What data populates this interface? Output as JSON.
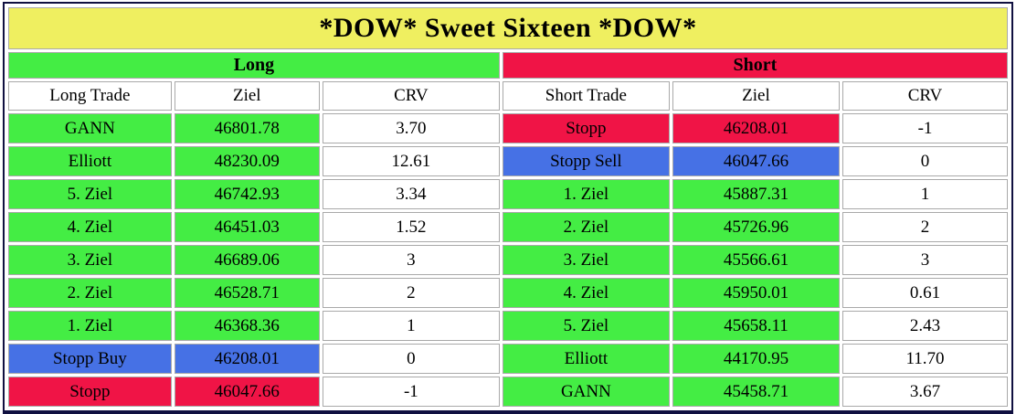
{
  "title": "*DOW* Sweet Sixteen *DOW*",
  "palette": {
    "yellow": "#efef60",
    "green": "#44ed44",
    "red": "#f01446",
    "blue": "#4671e5",
    "white": "#ffffff"
  },
  "sections": [
    {
      "label": "Long",
      "color": "green"
    },
    {
      "label": "Short",
      "color": "red"
    }
  ],
  "column_headers": [
    "Long Trade",
    "Ziel",
    "CRV",
    "Short Trade",
    "Ziel",
    "CRV"
  ],
  "rows": [
    {
      "long": {
        "trade": "GANN",
        "ziel": "46801.78",
        "crv": "3.70",
        "color": "green"
      },
      "short": {
        "trade": "Stopp",
        "ziel": "46208.01",
        "crv": "-1",
        "color": "red"
      }
    },
    {
      "long": {
        "trade": "Elliott",
        "ziel": "48230.09",
        "crv": "12.61",
        "color": "green"
      },
      "short": {
        "trade": "Stopp Sell",
        "ziel": "46047.66",
        "crv": "0",
        "color": "blue"
      }
    },
    {
      "long": {
        "trade": "5. Ziel",
        "ziel": "46742.93",
        "crv": "3.34",
        "color": "green"
      },
      "short": {
        "trade": "1. Ziel",
        "ziel": "45887.31",
        "crv": "1",
        "color": "green"
      }
    },
    {
      "long": {
        "trade": "4. Ziel",
        "ziel": "46451.03",
        "crv": "1.52",
        "color": "green"
      },
      "short": {
        "trade": "2. Ziel",
        "ziel": "45726.96",
        "crv": "2",
        "color": "green"
      }
    },
    {
      "long": {
        "trade": "3. Ziel",
        "ziel": "46689.06",
        "crv": "3",
        "color": "green"
      },
      "short": {
        "trade": "3. Ziel",
        "ziel": "45566.61",
        "crv": "3",
        "color": "green"
      }
    },
    {
      "long": {
        "trade": "2. Ziel",
        "ziel": "46528.71",
        "crv": "2",
        "color": "green"
      },
      "short": {
        "trade": "4. Ziel",
        "ziel": "45950.01",
        "crv": "0.61",
        "color": "green"
      }
    },
    {
      "long": {
        "trade": "1. Ziel",
        "ziel": "46368.36",
        "crv": "1",
        "color": "green"
      },
      "short": {
        "trade": "5. Ziel",
        "ziel": "45658.11",
        "crv": "2.43",
        "color": "green"
      }
    },
    {
      "long": {
        "trade": "Stopp Buy",
        "ziel": "46208.01",
        "crv": "0",
        "color": "blue"
      },
      "short": {
        "trade": "Elliott",
        "ziel": "44170.95",
        "crv": "11.70",
        "color": "green"
      }
    },
    {
      "long": {
        "trade": "Stopp",
        "ziel": "46047.66",
        "crv": "-1",
        "color": "red"
      },
      "short": {
        "trade": "GANN",
        "ziel": "45458.71",
        "crv": "3.67",
        "color": "green"
      }
    }
  ]
}
